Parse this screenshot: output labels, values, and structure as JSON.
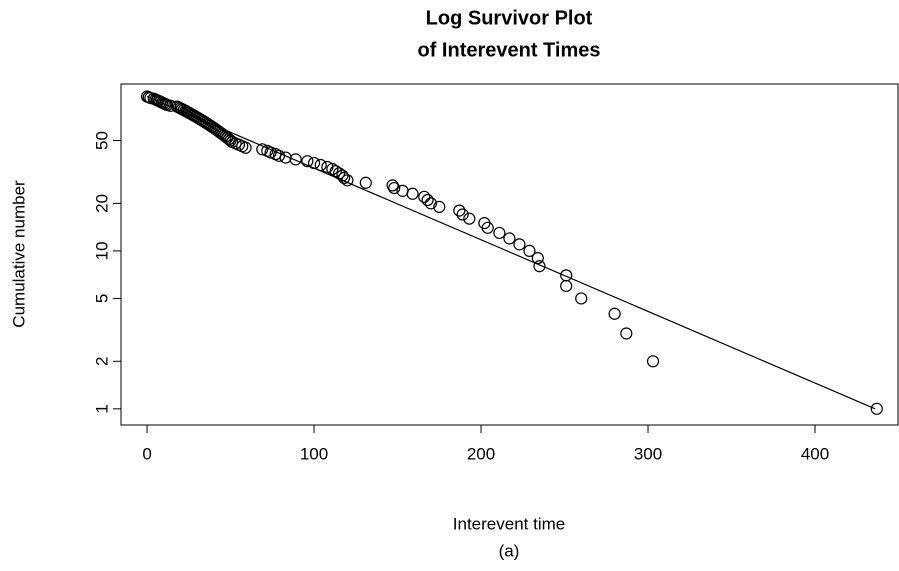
{
  "chart_data": {
    "type": "scatter",
    "title": [
      "Log Survivor Plot",
      "of Interevent Times"
    ],
    "xlabel": "Interevent time",
    "ylabel": "Cumulative number",
    "caption": "(a)",
    "ylog": true,
    "xlim": [
      -15.6,
      449.7
    ],
    "ylim": [
      0.79,
      114
    ],
    "xticks": [
      0,
      100,
      200,
      300,
      400
    ],
    "yticks": [
      1,
      2,
      5,
      10,
      20,
      50
    ],
    "x": [
      0,
      1,
      2,
      4,
      5,
      6,
      7,
      8,
      9,
      10,
      11,
      12,
      14,
      18,
      19,
      20,
      21,
      22,
      23,
      24,
      25,
      26,
      27,
      28,
      29,
      30,
      31,
      32,
      33,
      34,
      35,
      36,
      37,
      38,
      39,
      40,
      41,
      42,
      43,
      44,
      45,
      46,
      47,
      48,
      49,
      50,
      51,
      53,
      55,
      57,
      59,
      69,
      72,
      74,
      77,
      79,
      83,
      89,
      96,
      100,
      104,
      108,
      111,
      113,
      115,
      117,
      118,
      120,
      131,
      147,
      148,
      153,
      159,
      166,
      168,
      170,
      175,
      187,
      189,
      193,
      202,
      204,
      211,
      217,
      223,
      229,
      234,
      235,
      251,
      251,
      260,
      280,
      287,
      303,
      437
    ],
    "values": [
      95,
      94,
      93,
      92,
      91,
      90,
      89,
      88,
      87,
      86,
      85,
      84,
      83,
      82,
      81,
      80,
      79,
      78,
      77,
      76,
      75,
      74,
      73,
      72,
      71,
      70,
      69,
      68,
      67,
      66,
      65,
      64,
      63,
      62,
      61,
      60,
      59,
      58,
      57,
      56,
      55,
      54,
      53,
      52,
      51,
      50,
      49,
      48,
      47,
      46,
      45,
      44,
      43,
      42,
      41,
      40,
      39,
      38,
      37,
      36,
      35,
      34,
      33,
      32,
      31,
      30,
      29,
      28,
      27,
      26,
      25,
      24,
      23,
      22,
      21,
      20,
      19,
      18,
      17,
      16,
      15,
      14,
      13,
      12,
      11,
      10,
      9,
      8,
      7,
      6,
      5,
      4,
      3,
      2,
      1
    ],
    "fit_line": {
      "x": [
        0,
        436
      ],
      "values": [
        95,
        1
      ]
    }
  }
}
